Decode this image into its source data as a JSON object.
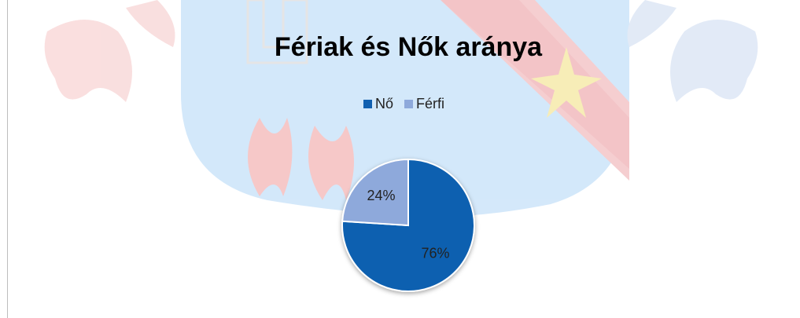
{
  "chart_data": {
    "type": "pie",
    "title": "Fériak és Nők aránya",
    "categories": [
      "Nő",
      "Férfi"
    ],
    "values": [
      76,
      24
    ],
    "value_labels": [
      "76%",
      "24%"
    ],
    "colors": [
      "#1160b0",
      "#8ea9db"
    ],
    "legend": "top"
  }
}
